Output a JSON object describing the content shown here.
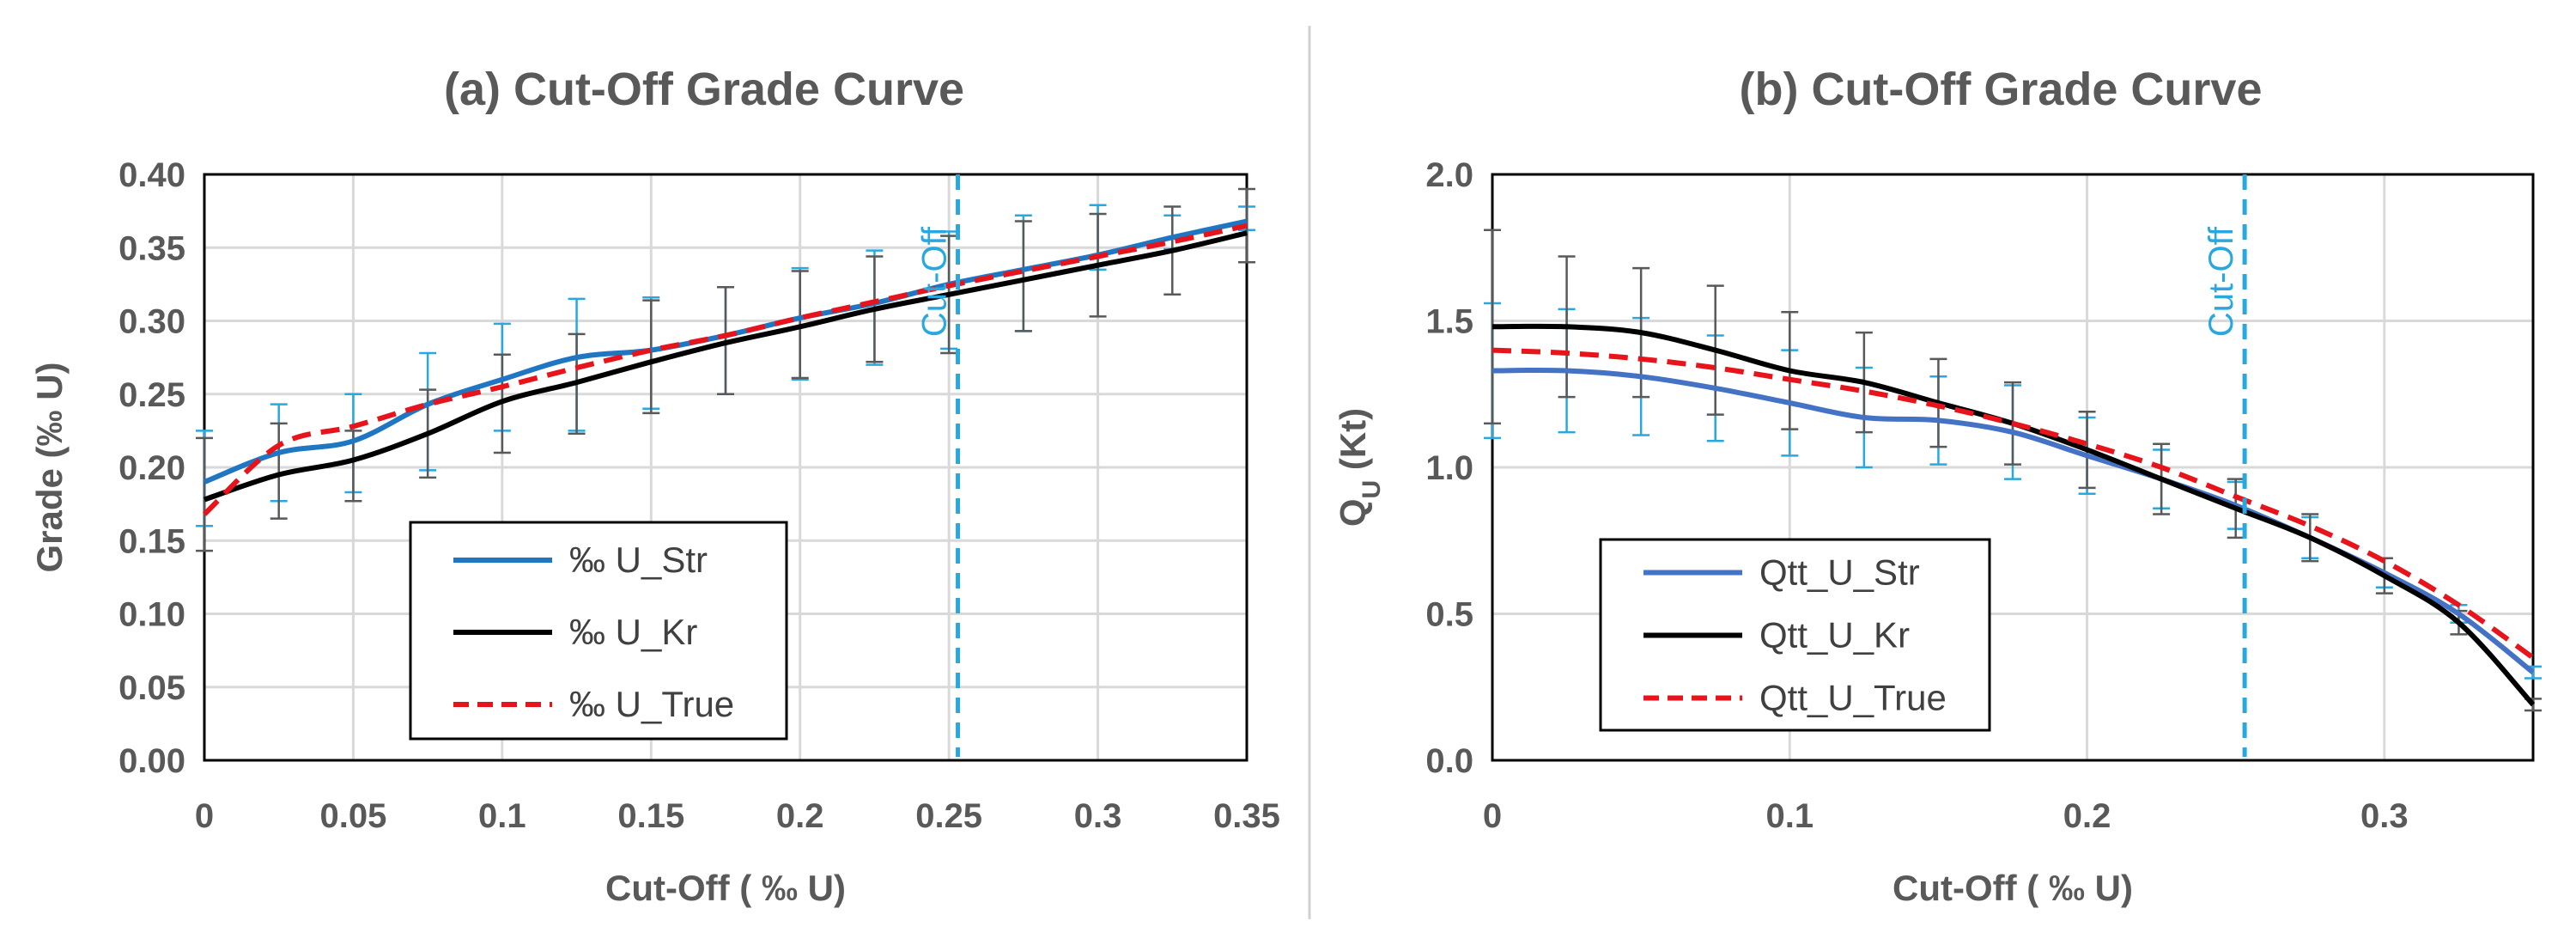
{
  "chart_data": [
    {
      "type": "line",
      "title": "(a) Cut-Off Grade Curve",
      "xlabel": "Cut-Off ( ‰ U)",
      "ylabel": "Grade (‰ U)",
      "xlim": [
        0,
        0.35
      ],
      "ylim": [
        0,
        0.4
      ],
      "xticks": [
        0,
        0.05,
        0.1,
        0.15,
        0.2,
        0.25,
        0.3,
        0.35
      ],
      "xtick_labels": [
        "0",
        "0.05",
        "0.1",
        "0.15",
        "0.2",
        "0.25",
        "0.3",
        "0.35"
      ],
      "yticks": [
        0,
        0.05,
        0.1,
        0.15,
        0.2,
        0.25,
        0.3,
        0.35,
        0.4
      ],
      "ytick_labels": [
        "0.00",
        "0.05",
        "0.10",
        "0.15",
        "0.20",
        "0.25",
        "0.30",
        "0.35",
        "0.40"
      ],
      "grid": true,
      "legend_position": "bottom-left",
      "x": [
        0,
        0.025,
        0.05,
        0.075,
        0.1,
        0.125,
        0.15,
        0.175,
        0.2,
        0.225,
        0.25,
        0.275,
        0.3,
        0.325,
        0.35
      ],
      "series": [
        {
          "name": "‰ U_Str",
          "color": "#1f77c4",
          "dash": "solid",
          "values": [
            0.19,
            0.21,
            0.218,
            0.243,
            0.26,
            0.275,
            0.28,
            0.29,
            0.302,
            0.312,
            0.325,
            0.335,
            0.345,
            0.357,
            0.368
          ],
          "err_color": "#29a8e0",
          "err_plus": [
            0.035,
            0.033,
            0.032,
            0.035,
            0.038,
            0.04,
            0.036,
            0.033,
            0.034,
            0.036,
            0.036,
            0.037,
            0.034,
            0.015,
            0.01
          ],
          "err_minus": [
            0.03,
            0.033,
            0.035,
            0.045,
            0.035,
            0.05,
            0.04,
            0.04,
            0.042,
            0.042,
            0.044,
            0.042,
            0.01,
            0.008,
            0.006
          ]
        },
        {
          "name": "‰ U_Kr",
          "color": "#000000",
          "dash": "solid",
          "values": [
            0.178,
            0.195,
            0.205,
            0.223,
            0.245,
            0.258,
            0.272,
            0.285,
            0.296,
            0.308,
            0.318,
            0.328,
            0.338,
            0.348,
            0.36
          ],
          "err_color": "#595959",
          "err_plus": [
            0.042,
            0.035,
            0.02,
            0.03,
            0.032,
            0.033,
            0.042,
            0.038,
            0.038,
            0.036,
            0.04,
            0.04,
            0.035,
            0.03,
            0.03
          ],
          "err_minus": [
            0.035,
            0.03,
            0.028,
            0.03,
            0.035,
            0.035,
            0.035,
            0.035,
            0.035,
            0.036,
            0.04,
            0.035,
            0.035,
            0.03,
            0.02
          ]
        },
        {
          "name": "‰ U_True",
          "color": "#e8141c",
          "dash": "dashed",
          "values": [
            0.168,
            0.215,
            0.228,
            0.243,
            0.255,
            0.268,
            0.28,
            0.29,
            0.302,
            0.313,
            0.324,
            0.334,
            0.344,
            0.354,
            0.365
          ]
        }
      ],
      "annotations": [
        {
          "type": "vline",
          "x": 0.253,
          "label": "Cut-Off",
          "color": "#29a8e0"
        }
      ]
    },
    {
      "type": "line",
      "title": "(b) Cut-Off Grade Curve",
      "xlabel": "Cut-Off ( ‰ U)",
      "ylabel": "Q",
      "ylabel_subscript": "U",
      "ylabel_suffix": " (Kt)",
      "xlim": [
        0,
        0.35
      ],
      "ylim": [
        0,
        2.0
      ],
      "xticks": [
        0,
        0.1,
        0.2,
        0.3
      ],
      "xtick_labels": [
        "0",
        "0.1",
        "0.2",
        "0.3"
      ],
      "yticks": [
        0,
        0.5,
        1.0,
        1.5,
        2.0
      ],
      "ytick_labels": [
        "0.0",
        "0.5",
        "1.0",
        "1.5",
        "2.0"
      ],
      "grid": true,
      "legend_position": "bottom-left",
      "x": [
        0,
        0.025,
        0.05,
        0.075,
        0.1,
        0.125,
        0.15,
        0.175,
        0.2,
        0.225,
        0.25,
        0.275,
        0.3,
        0.325,
        0.35
      ],
      "series": [
        {
          "name": "Qtt_U_Str",
          "color": "#4472c4",
          "dash": "solid",
          "values": [
            1.33,
            1.33,
            1.31,
            1.27,
            1.22,
            1.17,
            1.16,
            1.12,
            1.04,
            0.96,
            0.87,
            0.76,
            0.64,
            0.5,
            0.3
          ],
          "err_color": "#29a8e0",
          "err_plus": [
            0.23,
            0.21,
            0.2,
            0.18,
            0.18,
            0.17,
            0.15,
            0.16,
            0.13,
            0.1,
            0.08,
            0.07,
            0.05,
            0.03,
            0.02
          ],
          "err_minus": [
            0.23,
            0.21,
            0.2,
            0.18,
            0.18,
            0.17,
            0.15,
            0.16,
            0.13,
            0.1,
            0.08,
            0.07,
            0.05,
            0.03,
            0.02
          ]
        },
        {
          "name": "Qtt_U_Kr",
          "color": "#000000",
          "dash": "solid",
          "values": [
            1.48,
            1.48,
            1.46,
            1.4,
            1.33,
            1.29,
            1.22,
            1.15,
            1.06,
            0.96,
            0.86,
            0.76,
            0.63,
            0.47,
            0.19
          ],
          "err_color": "#595959",
          "err_plus": [
            0.33,
            0.24,
            0.22,
            0.22,
            0.2,
            0.17,
            0.15,
            0.14,
            0.13,
            0.12,
            0.1,
            0.08,
            0.06,
            0.04,
            0.02
          ],
          "err_minus": [
            0.33,
            0.24,
            0.22,
            0.22,
            0.2,
            0.17,
            0.15,
            0.14,
            0.13,
            0.12,
            0.1,
            0.08,
            0.06,
            0.04,
            0.02
          ]
        },
        {
          "name": "Qtt_U_True",
          "color": "#e8141c",
          "dash": "dashed",
          "values": [
            1.4,
            1.39,
            1.37,
            1.34,
            1.3,
            1.26,
            1.21,
            1.15,
            1.08,
            1.0,
            0.9,
            0.8,
            0.68,
            0.53,
            0.35
          ]
        }
      ],
      "annotations": [
        {
          "type": "vline",
          "x": 0.253,
          "label": "Cut-Off",
          "color": "#29a8e0"
        }
      ]
    }
  ]
}
